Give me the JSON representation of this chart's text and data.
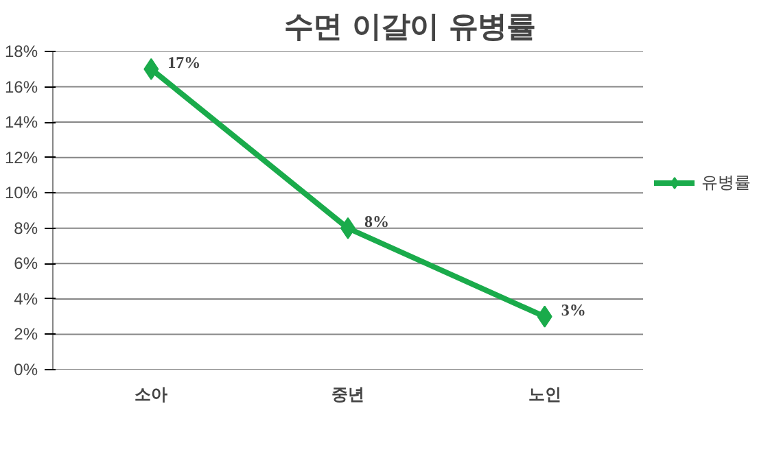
{
  "chart_data": {
    "type": "line",
    "title": "수면 이갈이 유병률",
    "categories": [
      "소아",
      "중년",
      "노인"
    ],
    "series": [
      {
        "name": "유병률",
        "color": "#1aab4b",
        "values": [
          17,
          8,
          3
        ]
      }
    ],
    "value_labels": [
      "17%",
      "8%",
      "3%"
    ],
    "ylim": [
      0,
      18
    ],
    "yticks": [
      {
        "value": 0,
        "label": "0%"
      },
      {
        "value": 2,
        "label": "2%"
      },
      {
        "value": 4,
        "label": "4%"
      },
      {
        "value": 6,
        "label": "6%"
      },
      {
        "value": 8,
        "label": "8%"
      },
      {
        "value": 10,
        "label": "10%"
      },
      {
        "value": 12,
        "label": "12%"
      },
      {
        "value": 14,
        "label": "14%"
      },
      {
        "value": 16,
        "label": "16%"
      },
      {
        "value": 18,
        "label": "18%"
      }
    ],
    "grid": "y",
    "legend": "right",
    "marker": "diamond",
    "line_style": "solid"
  }
}
